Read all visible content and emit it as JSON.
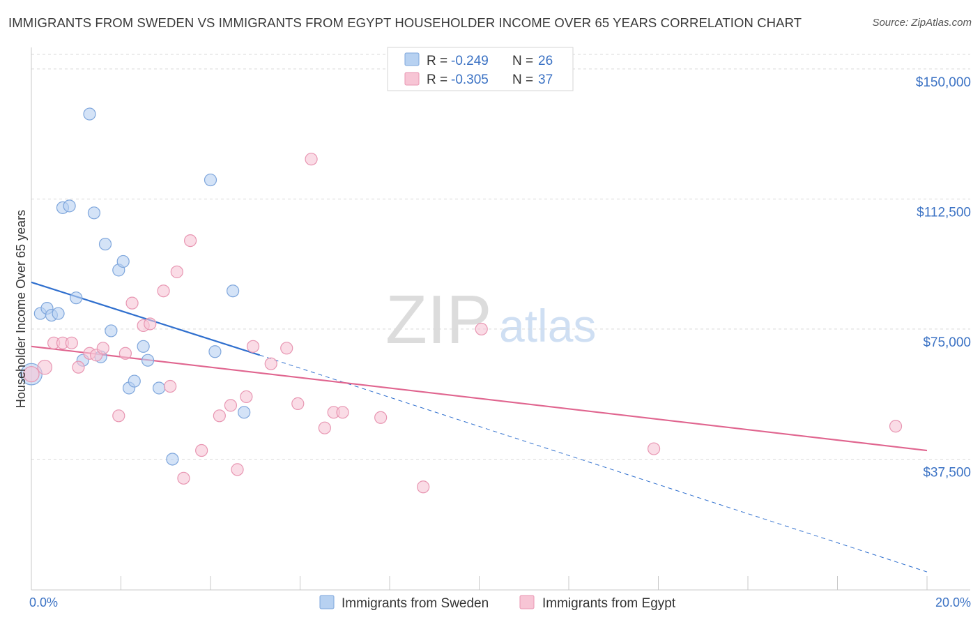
{
  "title": "IMMIGRANTS FROM SWEDEN VS IMMIGRANTS FROM EGYPT HOUSEHOLDER INCOME OVER 65 YEARS CORRELATION CHART",
  "source": "Source: ZipAtlas.com",
  "watermark": {
    "zip": "ZIP",
    "atlas": "atlas"
  },
  "colors": {
    "sweden_fill": "#b7d1f1",
    "sweden_stroke": "#7ea6dc",
    "sweden_line": "#2f6fce",
    "egypt_fill": "#f7c5d5",
    "egypt_stroke": "#e896b2",
    "egypt_line": "#e0658f",
    "grid": "#d9d9d9",
    "tick_text": "#3b72c4"
  },
  "legend": {
    "rows": [
      {
        "r_label": "R =",
        "r_value": "-0.249",
        "n_label": "N =",
        "n_value": "26"
      },
      {
        "r_label": "R =",
        "r_value": "-0.305",
        "n_label": "N =",
        "n_value": "37"
      }
    ]
  },
  "chart_data": {
    "type": "scatter",
    "xlabel": "",
    "ylabel": "Householder Income Over 65 years",
    "xlim": [
      0,
      20
    ],
    "ylim": [
      0,
      155000
    ],
    "x_tick_labels": [
      "0.0%",
      "20.0%"
    ],
    "y_ticks": [
      37500,
      75000,
      112500,
      150000
    ],
    "y_tick_labels": [
      "$37,500",
      "$75,000",
      "$112,500",
      "$150,000"
    ],
    "grid": true,
    "legend_position": "bottom",
    "series": [
      {
        "name": "Immigrants from Sweden",
        "r": -0.249,
        "n": 26,
        "trend": {
          "start": [
            0,
            88500
          ],
          "end": [
            5.1,
            67500
          ],
          "dashed_to": [
            20,
            5000
          ]
        },
        "points": [
          [
            0.0,
            62000,
            1.8
          ],
          [
            0.2,
            79500,
            1
          ],
          [
            0.35,
            81000,
            1
          ],
          [
            0.45,
            79000,
            1
          ],
          [
            0.6,
            79500,
            1
          ],
          [
            0.7,
            110000,
            1
          ],
          [
            0.85,
            110500,
            1
          ],
          [
            1.0,
            84000,
            1
          ],
          [
            1.15,
            66000,
            1
          ],
          [
            1.3,
            137000,
            1
          ],
          [
            1.4,
            108500,
            1
          ],
          [
            1.55,
            67000,
            1
          ],
          [
            1.65,
            99500,
            1
          ],
          [
            1.78,
            74500,
            1
          ],
          [
            1.95,
            92000,
            1
          ],
          [
            2.05,
            94500,
            1
          ],
          [
            2.18,
            58000,
            1
          ],
          [
            2.3,
            60000,
            1
          ],
          [
            2.5,
            70000,
            1
          ],
          [
            2.6,
            66000,
            1
          ],
          [
            2.85,
            58000,
            1
          ],
          [
            3.15,
            37500,
            1
          ],
          [
            4.0,
            118000,
            1
          ],
          [
            4.1,
            68500,
            1
          ],
          [
            4.5,
            86000,
            1
          ],
          [
            4.75,
            51000,
            1
          ]
        ]
      },
      {
        "name": "Immigrants from Egypt",
        "r": -0.305,
        "n": 37,
        "trend": {
          "start": [
            0,
            70000
          ],
          "end": [
            20,
            40000
          ]
        },
        "points": [
          [
            0.0,
            62000,
            1.3
          ],
          [
            0.3,
            64000,
            1.2
          ],
          [
            0.5,
            71000,
            1
          ],
          [
            0.7,
            71000,
            1
          ],
          [
            0.9,
            71000,
            1
          ],
          [
            1.05,
            64000,
            1
          ],
          [
            1.3,
            68000,
            1
          ],
          [
            1.45,
            67500,
            1
          ],
          [
            1.6,
            69500,
            1
          ],
          [
            1.95,
            50000,
            1
          ],
          [
            2.1,
            68000,
            1
          ],
          [
            2.25,
            82500,
            1
          ],
          [
            2.5,
            76000,
            1
          ],
          [
            2.65,
            76500,
            1
          ],
          [
            2.95,
            86000,
            1
          ],
          [
            3.1,
            58500,
            1
          ],
          [
            3.25,
            91500,
            1
          ],
          [
            3.4,
            32000,
            1
          ],
          [
            3.55,
            100500,
            1
          ],
          [
            3.8,
            40000,
            1
          ],
          [
            4.2,
            50000,
            1
          ],
          [
            4.45,
            53000,
            1
          ],
          [
            4.6,
            34500,
            1
          ],
          [
            4.95,
            70000,
            1
          ],
          [
            4.8,
            55500,
            1
          ],
          [
            5.35,
            65000,
            1
          ],
          [
            5.7,
            69500,
            1
          ],
          [
            5.95,
            53500,
            1
          ],
          [
            6.25,
            124000,
            1
          ],
          [
            6.55,
            46500,
            1
          ],
          [
            6.75,
            51000,
            1
          ],
          [
            6.95,
            51000,
            1
          ],
          [
            7.8,
            49500,
            1
          ],
          [
            8.75,
            29500,
            1
          ],
          [
            10.05,
            75000,
            1
          ],
          [
            13.9,
            40500,
            1
          ],
          [
            19.3,
            47000,
            1
          ]
        ]
      }
    ]
  }
}
